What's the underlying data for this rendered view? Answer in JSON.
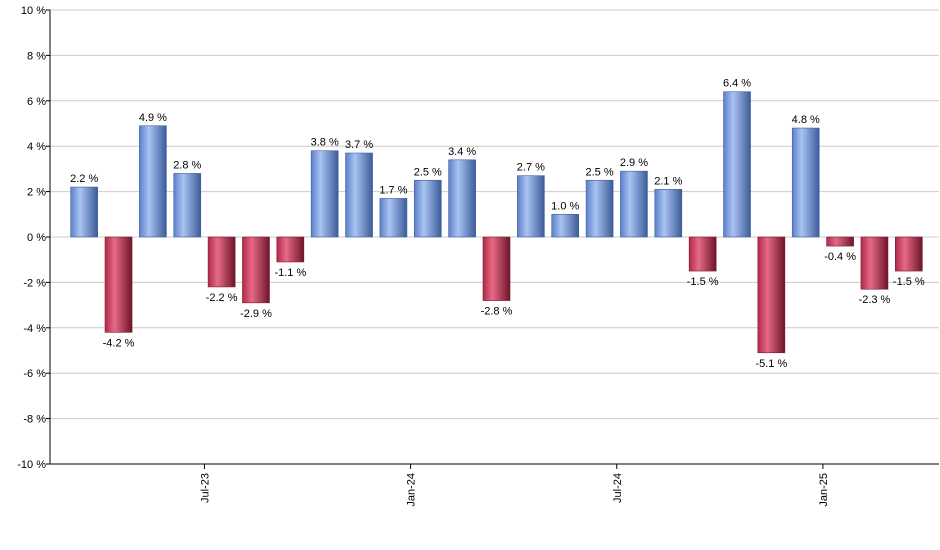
{
  "chart_data": {
    "type": "bar",
    "ylim": [
      -10,
      10
    ],
    "y_ticks": [
      10,
      8,
      6,
      4,
      2,
      0,
      -2,
      -4,
      -6,
      -8,
      -10
    ],
    "y_tick_suffix": " %",
    "grid": true,
    "x_tick_labels": [
      {
        "label": "Jul-23",
        "after_index": 3
      },
      {
        "label": "Jan-24",
        "after_index": 9
      },
      {
        "label": "Jul-24",
        "after_index": 15
      },
      {
        "label": "Jan-25",
        "after_index": 21
      }
    ],
    "values": [
      2.2,
      -4.2,
      4.9,
      2.8,
      -2.2,
      -2.9,
      -1.1,
      3.8,
      3.7,
      1.7,
      2.5,
      3.4,
      -2.8,
      2.7,
      1.0,
      2.5,
      2.9,
      2.1,
      -1.5,
      6.4,
      -5.1,
      4.8,
      -0.4,
      -2.3,
      -1.5
    ],
    "labels": [
      "2.2 %",
      "-4.2 %",
      "4.9 %",
      "2.8 %",
      "-2.2 %",
      "-2.9 %",
      "-1.1 %",
      "3.8 %",
      "3.7 %",
      "1.7 %",
      "2.5 %",
      "3.4 %",
      "-2.8 %",
      "2.7 %",
      "1.0 %",
      "2.5 %",
      "2.9 %",
      "2.1 %",
      "-1.5 %",
      "6.4 %",
      "-5.1 %",
      "4.8 %",
      "-0.4 %",
      "-2.3 %",
      "-1.5 %"
    ],
    "colors": {
      "positive": "#6f93d9",
      "positive_dark": "#3e5f9c",
      "negative": "#c63a58",
      "negative_dark": "#7a1a30",
      "grid": "#cccccc",
      "axis": "#000000"
    }
  }
}
